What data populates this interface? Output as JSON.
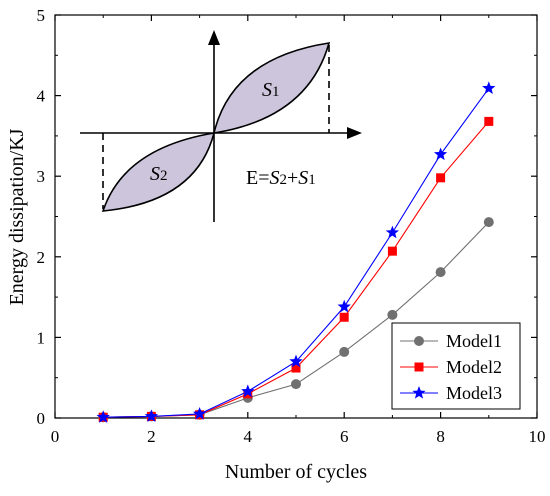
{
  "chart_data": {
    "type": "line",
    "title": "",
    "xlabel": "Number of cycles",
    "ylabel": "Energy dissipation/KJ",
    "xlim": [
      0,
      10
    ],
    "ylim": [
      0,
      5
    ],
    "x_ticks": [
      "0",
      "2",
      "4",
      "6",
      "8",
      "10"
    ],
    "y_ticks": [
      "0",
      "1",
      "2",
      "3",
      "4",
      "5"
    ],
    "grid": false,
    "legend_position": "bottom-right",
    "series": [
      {
        "name": "Model1",
        "color": "#707070",
        "marker": "circle",
        "x": [
          1,
          2,
          3,
          4,
          5,
          6,
          7,
          8,
          9
        ],
        "y": [
          0.01,
          0.02,
          0.04,
          0.25,
          0.42,
          0.82,
          1.28,
          1.81,
          2.43
        ]
      },
      {
        "name": "Model2",
        "color": "#ff0000",
        "marker": "square",
        "x": [
          1,
          2,
          3,
          4,
          5,
          6,
          7,
          8,
          9
        ],
        "y": [
          0.01,
          0.02,
          0.04,
          0.3,
          0.62,
          1.25,
          2.07,
          2.98,
          3.68
        ]
      },
      {
        "name": "Model3",
        "color": "#0000ff",
        "marker": "star",
        "x": [
          1,
          2,
          3,
          4,
          5,
          6,
          7,
          8,
          9
        ],
        "y": [
          0.01,
          0.02,
          0.05,
          0.33,
          0.7,
          1.38,
          2.3,
          3.27,
          4.09
        ]
      }
    ]
  },
  "inset": {
    "s1_label": "S",
    "s1_sub": "1",
    "s2_label": "S",
    "s2_sub": "2",
    "equation_prefix": "E=",
    "equation_s2": "S",
    "equation_s2_sub": "2",
    "equation_plus": "+",
    "equation_s1": "S",
    "equation_s1_sub": "1",
    "fill_color": "#ccc5dc"
  }
}
